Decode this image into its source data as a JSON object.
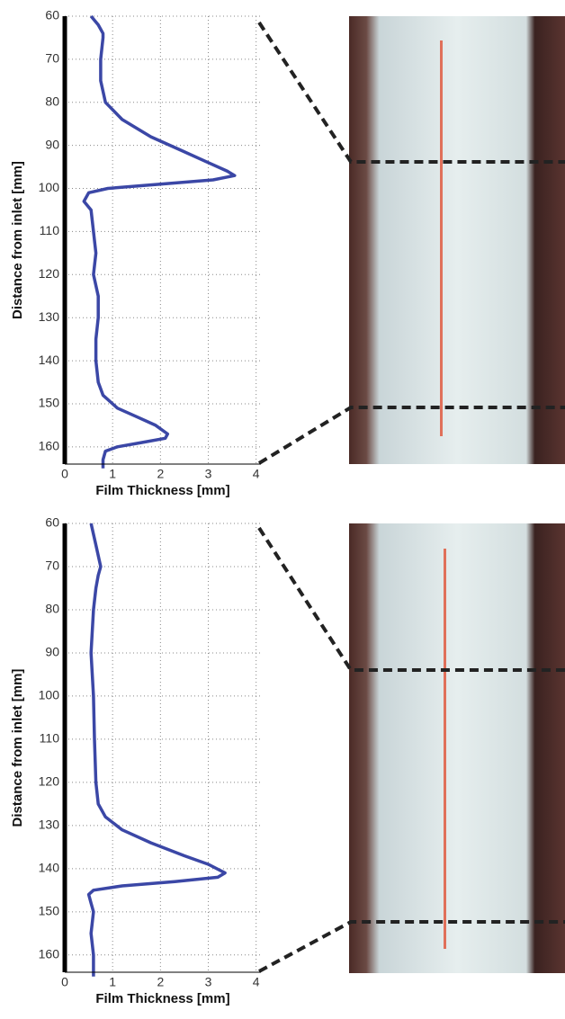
{
  "chart_data": [
    {
      "type": "line",
      "xlabel": "Film Thickness [mm]",
      "ylabel": "Distance from inlet [mm]",
      "y": [
        60,
        62,
        64,
        65,
        70,
        75,
        80,
        84,
        88,
        91,
        94,
        96,
        97,
        98,
        99,
        100,
        101,
        103,
        105,
        110,
        115,
        120,
        125,
        130,
        135,
        140,
        145,
        148,
        151,
        153,
        155,
        157,
        158,
        159,
        160,
        161,
        163,
        165
      ],
      "series": [
        {
          "color": "#3b47a6",
          "values": [
            0.55,
            0.7,
            0.8,
            0.8,
            0.75,
            0.75,
            0.85,
            1.2,
            1.8,
            2.4,
            3.0,
            3.4,
            3.55,
            3.1,
            2.0,
            0.9,
            0.5,
            0.4,
            0.55,
            0.6,
            0.65,
            0.6,
            0.7,
            0.7,
            0.65,
            0.65,
            0.7,
            0.8,
            1.1,
            1.5,
            1.9,
            2.15,
            2.1,
            1.6,
            1.1,
            0.85,
            0.8,
            0.8
          ]
        }
      ],
      "xlim": [
        0,
        4.1
      ],
      "xticks": [
        0,
        1,
        2,
        3,
        4
      ],
      "ylim": [
        60,
        164
      ],
      "yticks": [
        60,
        70,
        80,
        90,
        100,
        110,
        120,
        130,
        140,
        150,
        160
      ],
      "y_inverted": true,
      "grid": true
    },
    {
      "type": "line",
      "xlabel": "Film Thickness [mm]",
      "ylabel": "Distance from inlet [mm]",
      "y": [
        60,
        65,
        70,
        72,
        75,
        80,
        90,
        100,
        110,
        120,
        125,
        128,
        131,
        134,
        137,
        139,
        141,
        142,
        143,
        144,
        145,
        146,
        148,
        150,
        155,
        160,
        165
      ],
      "series": [
        {
          "color": "#3b47a6",
          "values": [
            0.55,
            0.65,
            0.75,
            0.7,
            0.65,
            0.6,
            0.55,
            0.6,
            0.62,
            0.65,
            0.7,
            0.85,
            1.2,
            1.8,
            2.5,
            3.0,
            3.35,
            3.2,
            2.3,
            1.2,
            0.6,
            0.5,
            0.55,
            0.6,
            0.55,
            0.6,
            0.6
          ]
        }
      ],
      "xlim": [
        0,
        4.1
      ],
      "xticks": [
        0,
        1,
        2,
        3,
        4
      ],
      "ylim": [
        60,
        164
      ],
      "yticks": [
        60,
        70,
        80,
        90,
        100,
        110,
        120,
        130,
        140,
        150,
        160
      ],
      "y_inverted": true,
      "grid": true
    }
  ]
}
